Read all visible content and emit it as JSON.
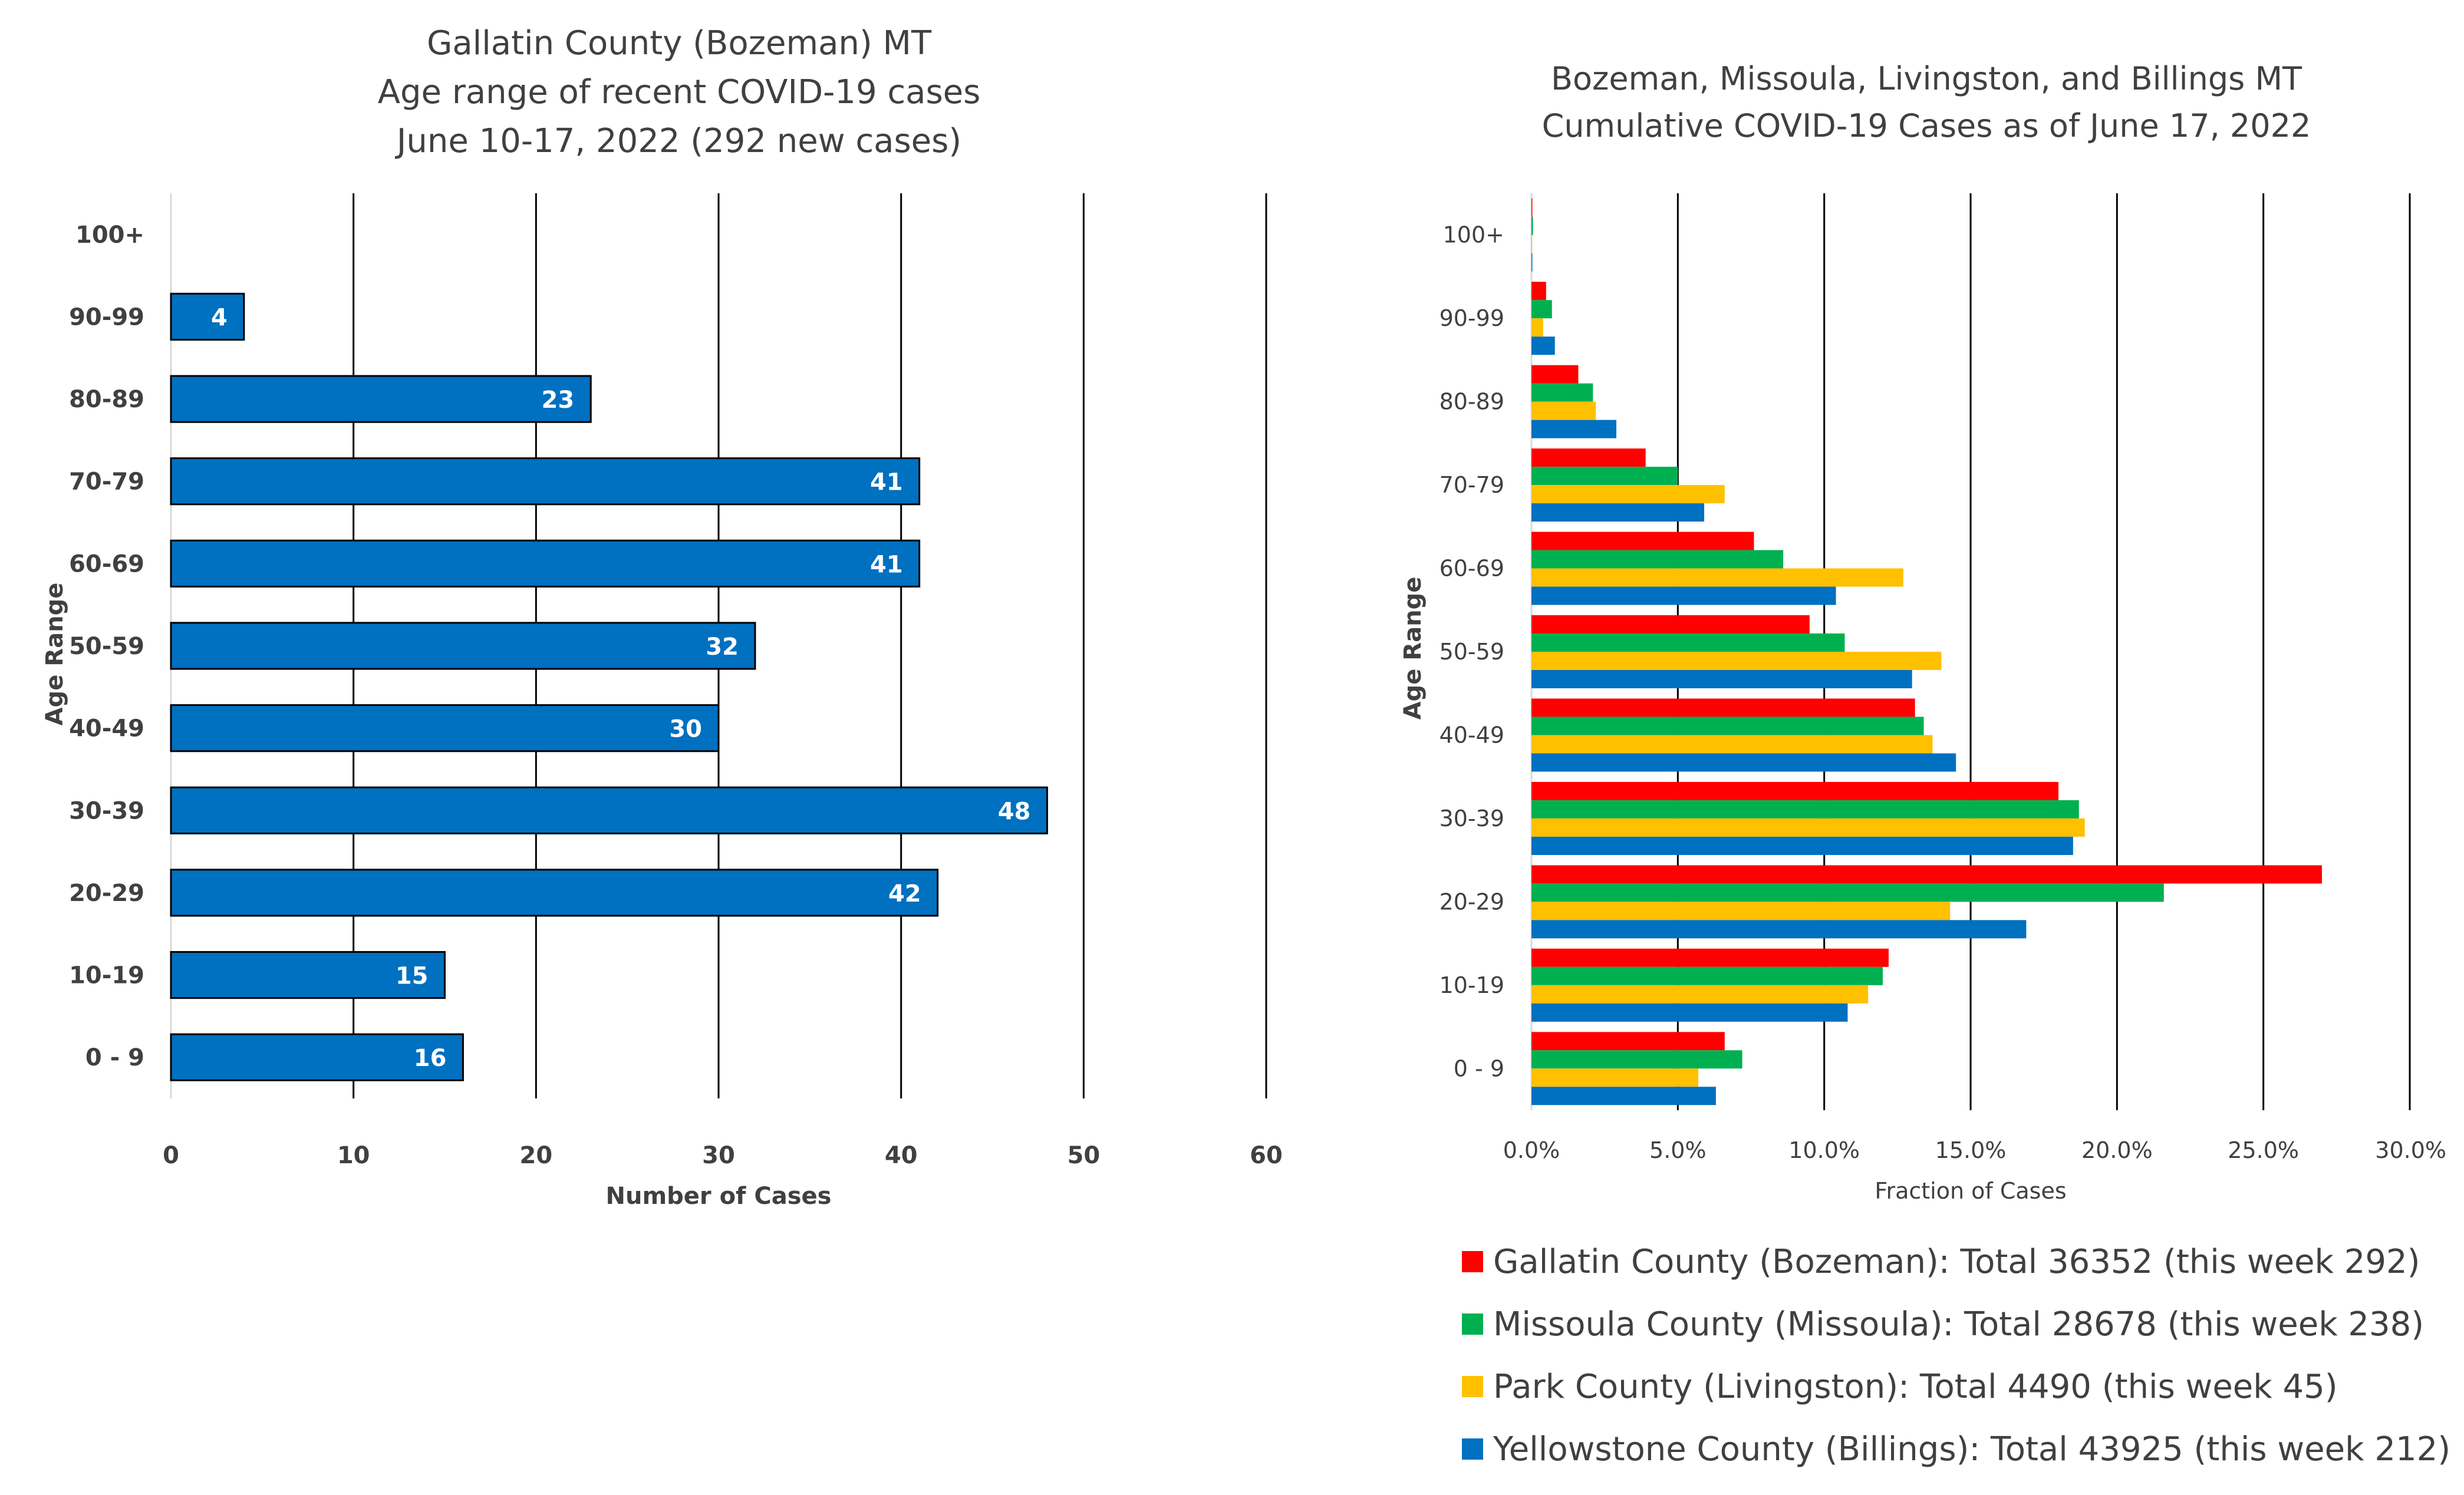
{
  "chart_data": [
    {
      "type": "bar",
      "orientation": "horizontal",
      "title": [
        "Gallatin County (Bozeman) MT",
        "Age range of recent COVID-19 cases",
        "June 10-17, 2022 (292 new cases)"
      ],
      "xlabel": "Number of Cases",
      "ylabel": "Age Range",
      "categories": [
        "0 - 9",
        "10-19",
        "20-29",
        "30-39",
        "40-49",
        "50-59",
        "60-69",
        "70-79",
        "80-89",
        "90-99",
        "100+"
      ],
      "values": [
        16,
        15,
        42,
        48,
        30,
        32,
        41,
        41,
        23,
        4,
        null
      ],
      "data_labels": [
        "16",
        "15",
        "42",
        "48",
        "30",
        "32",
        "41",
        "41",
        "23",
        "4",
        ""
      ],
      "xlim": [
        0,
        60
      ],
      "xticks": [
        "0",
        "10",
        "20",
        "30",
        "40",
        "50",
        "60"
      ],
      "grid": "vertical",
      "color": "#0070C0"
    },
    {
      "type": "bar",
      "orientation": "horizontal",
      "title": [
        "Bozeman, Missoula, Livingston, and Billings MT",
        "Cumulative COVID-19 Cases as of June 17, 2022"
      ],
      "xlabel": "Fraction of Cases",
      "ylabel": "Age Range",
      "categories": [
        "0 - 9",
        "10-19",
        "20-29",
        "30-39",
        "40-49",
        "50-59",
        "60-69",
        "70-79",
        "80-89",
        "90-99",
        "100+"
      ],
      "xlim": [
        0,
        0.3
      ],
      "xticks": [
        "0.0%",
        "5.0%",
        "10.0%",
        "15.0%",
        "20.0%",
        "25.0%",
        "30.0%"
      ],
      "grid": "vertical",
      "legend_position": "bottom",
      "series": [
        {
          "name": "Gallatin County (Bozeman): Total 36352 (this week 292)",
          "color": "#FF0000",
          "values": [
            0.066,
            0.122,
            0.27,
            0.18,
            0.131,
            0.095,
            0.076,
            0.039,
            0.016,
            0.005,
            0.0003
          ]
        },
        {
          "name": "Missoula County (Missoula): Total 28678 (this week 238)",
          "color": "#00B050",
          "values": [
            0.072,
            0.12,
            0.216,
            0.187,
            0.134,
            0.107,
            0.086,
            0.05,
            0.021,
            0.007,
            0.0005
          ]
        },
        {
          "name": "Park County (Livingston): Total 4490 (this week 45)",
          "color": "#FFC000",
          "values": [
            0.057,
            0.115,
            0.143,
            0.189,
            0.137,
            0.14,
            0.127,
            0.066,
            0.022,
            0.004,
            0.0002
          ]
        },
        {
          "name": "Yellowstone County (Billings): Total 43925 (this week 212)",
          "color": "#0070C0",
          "values": [
            0.063,
            0.108,
            0.169,
            0.185,
            0.145,
            0.13,
            0.104,
            0.059,
            0.029,
            0.008,
            0.0003
          ]
        }
      ]
    }
  ]
}
